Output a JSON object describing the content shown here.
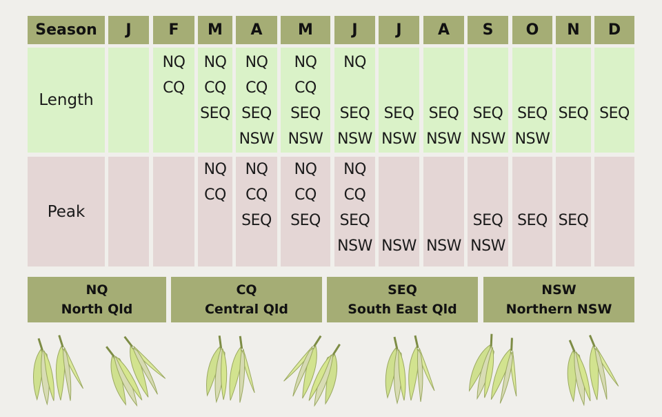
{
  "table": {
    "header_label": "Season",
    "months": [
      "J",
      "F",
      "M",
      "A",
      "M",
      "J",
      "J",
      "A",
      "S",
      "O",
      "N",
      "D"
    ],
    "row_labels": {
      "length": "Length",
      "peak": "Peak"
    },
    "slot_order": [
      "NQ",
      "CQ",
      "SEQ",
      "NSW"
    ],
    "length": [
      [
        "",
        "",
        "",
        ""
      ],
      [
        "NQ",
        "CQ",
        "",
        ""
      ],
      [
        "NQ",
        "CQ",
        "SEQ",
        ""
      ],
      [
        "NQ",
        "CQ",
        "SEQ",
        "NSW"
      ],
      [
        "NQ",
        "CQ",
        "SEQ",
        "NSW"
      ],
      [
        "NQ",
        "",
        "SEQ",
        "NSW"
      ],
      [
        "",
        "",
        "SEQ",
        "NSW"
      ],
      [
        "",
        "",
        "SEQ",
        "NSW"
      ],
      [
        "",
        "",
        "SEQ",
        "NSW"
      ],
      [
        "",
        "",
        "SEQ",
        "NSW"
      ],
      [
        "",
        "",
        "SEQ",
        ""
      ],
      [
        "",
        "",
        "SEQ",
        ""
      ]
    ],
    "peak": [
      [
        "",
        "",
        "",
        ""
      ],
      [
        "",
        "",
        "",
        ""
      ],
      [
        "NQ",
        "CQ",
        "",
        ""
      ],
      [
        "NQ",
        "CQ",
        "SEQ",
        ""
      ],
      [
        "NQ",
        "CQ",
        "SEQ",
        ""
      ],
      [
        "NQ",
        "CQ",
        "SEQ",
        "NSW"
      ],
      [
        "",
        "",
        "",
        "NSW"
      ],
      [
        "",
        "",
        "",
        "NSW"
      ],
      [
        "",
        "",
        "SEQ",
        "NSW"
      ],
      [
        "",
        "",
        "SEQ",
        ""
      ],
      [
        "",
        "",
        "SEQ",
        ""
      ],
      [
        "",
        "",
        "",
        ""
      ]
    ]
  },
  "legend": [
    {
      "code": "NQ",
      "name": "North Qld"
    },
    {
      "code": "CQ",
      "name": "Central Qld"
    },
    {
      "code": "SEQ",
      "name": "South East Qld"
    },
    {
      "code": "NSW",
      "name": "Northern NSW"
    }
  ],
  "colors": {
    "header_bg": "#a5ad75",
    "length_bg": "#daf2c8",
    "peak_bg": "#e4d6d5",
    "page_bg": "#f0efeb"
  },
  "images": {
    "decoration": "pepper-icon",
    "count": 7
  }
}
